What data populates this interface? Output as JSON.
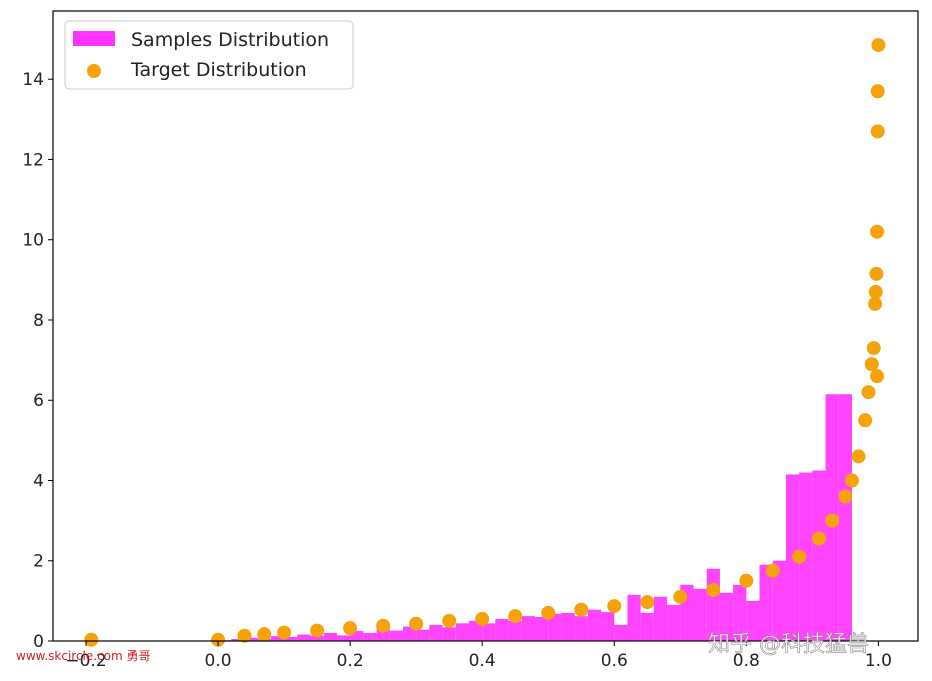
{
  "chart_data": {
    "type": "histogram+scatter",
    "xlim": [
      -0.25,
      1.06
    ],
    "ylim": [
      0,
      15.7
    ],
    "xticks": [
      -0.2,
      0.0,
      0.2,
      0.4,
      0.6,
      0.8,
      1.0
    ],
    "xtick_labels": [
      "−0.2",
      "0.0",
      "0.2",
      "0.4",
      "0.6",
      "0.8",
      "1.0"
    ],
    "yticks": [
      0,
      2,
      4,
      6,
      8,
      10,
      12,
      14
    ],
    "ytick_labels": [
      "0",
      "2",
      "4",
      "6",
      "8",
      "10",
      "12",
      "14"
    ],
    "grid": false,
    "legend_position": "top-left",
    "colors": {
      "samples": "#ff33ff",
      "target": "#f5a20b"
    },
    "series": [
      {
        "name": "Samples Distribution",
        "kind": "histogram",
        "bin_edges": [
          0.0,
          0.02,
          0.04,
          0.06,
          0.08,
          0.1,
          0.12,
          0.14,
          0.16,
          0.18,
          0.2,
          0.22,
          0.24,
          0.26,
          0.28,
          0.3,
          0.32,
          0.34,
          0.36,
          0.38,
          0.4,
          0.42,
          0.44,
          0.46,
          0.48,
          0.5,
          0.52,
          0.54,
          0.56,
          0.58,
          0.6,
          0.62,
          0.64,
          0.66,
          0.68,
          0.7,
          0.72,
          0.74,
          0.76,
          0.78,
          0.8,
          0.82,
          0.84,
          0.86,
          0.88,
          0.9,
          0.92,
          0.94,
          0.96,
          0.98,
          1.0
        ],
        "values": [
          0.02,
          0.05,
          0.08,
          0.06,
          0.12,
          0.1,
          0.16,
          0.13,
          0.2,
          0.14,
          0.25,
          0.2,
          0.3,
          0.26,
          0.36,
          0.28,
          0.4,
          0.34,
          0.44,
          0.5,
          0.44,
          0.55,
          0.5,
          0.62,
          0.6,
          0.68,
          0.7,
          0.62,
          0.78,
          0.72,
          0.4,
          1.15,
          0.7,
          1.1,
          0.9,
          1.4,
          1.3,
          1.8,
          1.2,
          1.4,
          1.0,
          1.9,
          2.0,
          4.15,
          4.2,
          4.25,
          6.15,
          6.15,
          0.0,
          0.0
        ]
      },
      {
        "name": "Target Distribution",
        "kind": "scatter",
        "x": [
          -0.192,
          0.0,
          0.04,
          0.07,
          0.1,
          0.15,
          0.2,
          0.25,
          0.3,
          0.35,
          0.4,
          0.45,
          0.5,
          0.55,
          0.6,
          0.65,
          0.7,
          0.75,
          0.8,
          0.84,
          0.88,
          0.91,
          0.93,
          0.95,
          0.96,
          0.97,
          0.98,
          0.985,
          0.99,
          0.993,
          0.995,
          0.996,
          0.997,
          0.998,
          0.999,
          1.0
        ],
        "y": [
          0.03,
          0.03,
          0.13,
          0.17,
          0.21,
          0.26,
          0.32,
          0.38,
          0.43,
          0.5,
          0.55,
          0.62,
          0.7,
          0.78,
          0.87,
          0.97,
          1.1,
          1.27,
          1.5,
          1.75,
          2.1,
          2.55,
          3.0,
          3.6,
          4.0,
          4.6,
          5.5,
          6.2,
          6.9,
          7.3,
          8.4,
          8.7,
          9.15,
          10.2,
          12.7,
          14.85
        ],
        "extra_points": {
          "x": [
            0.999,
            0.998
          ],
          "y": [
            13.7,
            6.6
          ]
        }
      }
    ]
  },
  "watermarks": {
    "bottom_left": "www.skcircle.com 勇哥",
    "bottom_right": "知乎 @科技猛兽"
  }
}
